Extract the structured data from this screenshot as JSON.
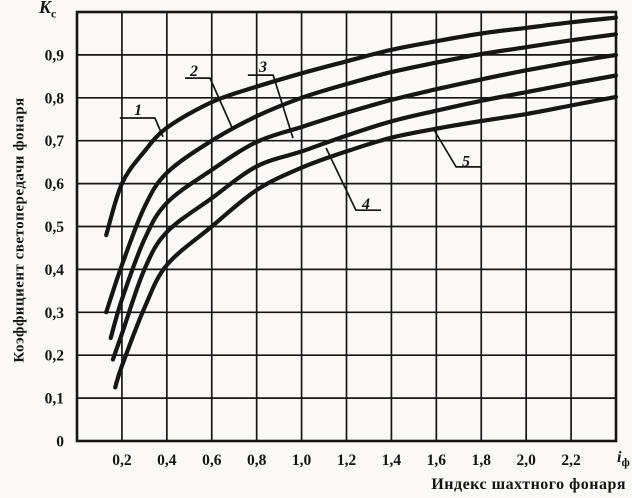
{
  "y_axis_symbol": {
    "base": "K",
    "sub": "c"
  },
  "x_axis_symbol": {
    "base": "i",
    "sub": "ф"
  },
  "y_axis_title": "Коэффициент светопередачи фонаря",
  "x_axis_title": "Индекс шахтного фонаря",
  "colors": {
    "line": "#161616",
    "background": "#faf9f8",
    "text": "#141414"
  },
  "chart_data": {
    "type": "line",
    "title": "",
    "xlabel": "Индекс шахтного фонаря",
    "ylabel": "Коэффициент светопередачи фонаря",
    "x_range": [
      0,
      2.4
    ],
    "y_range": [
      0,
      1.0
    ],
    "x_grid_step": 0.2,
    "y_grid_step": 0.1,
    "grid": true,
    "x_ticks": [
      {
        "v": 0.2,
        "label": "0,2"
      },
      {
        "v": 0.4,
        "label": "0,4"
      },
      {
        "v": 0.6,
        "label": "0,6"
      },
      {
        "v": 0.8,
        "label": "0,8"
      },
      {
        "v": 1.0,
        "label": "1,0"
      },
      {
        "v": 1.2,
        "label": "1,2"
      },
      {
        "v": 1.4,
        "label": "1,4"
      },
      {
        "v": 1.6,
        "label": "1,6"
      },
      {
        "v": 1.8,
        "label": "1,8"
      },
      {
        "v": 2.0,
        "label": "2,0"
      },
      {
        "v": 2.2,
        "label": "2,2"
      }
    ],
    "y_ticks": [
      {
        "v": 0.9,
        "label": "0,9"
      },
      {
        "v": 0.8,
        "label": "0,8"
      },
      {
        "v": 0.7,
        "label": "0,7"
      },
      {
        "v": 0.6,
        "label": "0,6"
      },
      {
        "v": 0.5,
        "label": "0,5"
      },
      {
        "v": 0.4,
        "label": "0,4"
      },
      {
        "v": 0.3,
        "label": "0,3"
      },
      {
        "v": 0.2,
        "label": "0,2"
      },
      {
        "v": 0.1,
        "label": "0,1"
      },
      {
        "v": 0,
        "label": "0"
      }
    ],
    "series": [
      {
        "name": "1",
        "points": [
          [
            0.13,
            0.48
          ],
          [
            0.2,
            0.6
          ],
          [
            0.3,
            0.675
          ],
          [
            0.4,
            0.73
          ],
          [
            0.6,
            0.79
          ],
          [
            0.8,
            0.826
          ],
          [
            1.0,
            0.857
          ],
          [
            1.2,
            0.885
          ],
          [
            1.4,
            0.912
          ],
          [
            1.6,
            0.932
          ],
          [
            1.8,
            0.95
          ],
          [
            2.0,
            0.963
          ],
          [
            2.2,
            0.976
          ],
          [
            2.4,
            0.987
          ]
        ]
      },
      {
        "name": "2",
        "points": [
          [
            0.13,
            0.3
          ],
          [
            0.2,
            0.41
          ],
          [
            0.3,
            0.545
          ],
          [
            0.4,
            0.625
          ],
          [
            0.6,
            0.7
          ],
          [
            0.8,
            0.757
          ],
          [
            1.0,
            0.8
          ],
          [
            1.2,
            0.832
          ],
          [
            1.4,
            0.86
          ],
          [
            1.6,
            0.882
          ],
          [
            1.8,
            0.902
          ],
          [
            2.0,
            0.918
          ],
          [
            2.2,
            0.934
          ],
          [
            2.4,
            0.948
          ]
        ]
      },
      {
        "name": "3",
        "points": [
          [
            0.15,
            0.24
          ],
          [
            0.2,
            0.33
          ],
          [
            0.3,
            0.47
          ],
          [
            0.4,
            0.555
          ],
          [
            0.6,
            0.632
          ],
          [
            0.8,
            0.697
          ],
          [
            1.0,
            0.732
          ],
          [
            1.2,
            0.765
          ],
          [
            1.4,
            0.795
          ],
          [
            1.6,
            0.82
          ],
          [
            1.8,
            0.843
          ],
          [
            2.0,
            0.864
          ],
          [
            2.2,
            0.883
          ],
          [
            2.4,
            0.9
          ]
        ]
      },
      {
        "name": "4",
        "points": [
          [
            0.16,
            0.19
          ],
          [
            0.2,
            0.25
          ],
          [
            0.3,
            0.4
          ],
          [
            0.4,
            0.487
          ],
          [
            0.6,
            0.566
          ],
          [
            0.8,
            0.64
          ],
          [
            1.0,
            0.675
          ],
          [
            1.2,
            0.712
          ],
          [
            1.4,
            0.745
          ],
          [
            1.6,
            0.77
          ],
          [
            1.8,
            0.793
          ],
          [
            2.0,
            0.813
          ],
          [
            2.2,
            0.833
          ],
          [
            2.4,
            0.852
          ]
        ]
      },
      {
        "name": "5",
        "points": [
          [
            0.17,
            0.125
          ],
          [
            0.2,
            0.175
          ],
          [
            0.3,
            0.31
          ],
          [
            0.4,
            0.41
          ],
          [
            0.6,
            0.5
          ],
          [
            0.8,
            0.585
          ],
          [
            1.0,
            0.637
          ],
          [
            1.2,
            0.675
          ],
          [
            1.4,
            0.707
          ],
          [
            1.6,
            0.728
          ],
          [
            1.8,
            0.746
          ],
          [
            2.0,
            0.762
          ],
          [
            2.2,
            0.782
          ],
          [
            2.4,
            0.802
          ]
        ]
      }
    ],
    "annotations": [
      {
        "label": "1",
        "text_at": [
          0.272,
          0.772
        ],
        "leader": [
          [
            0.191,
            0.753
          ],
          [
            0.347,
            0.753
          ],
          [
            0.383,
            0.709
          ]
        ]
      },
      {
        "label": "2",
        "text_at": [
          0.521,
          0.862
        ],
        "leader": [
          [
            0.481,
            0.846
          ],
          [
            0.592,
            0.846
          ],
          [
            0.695,
            0.725
          ]
        ]
      },
      {
        "label": "3",
        "text_at": [
          0.828,
          0.872
        ],
        "leader": [
          [
            0.761,
            0.853
          ],
          [
            0.873,
            0.853
          ],
          [
            0.962,
            0.706
          ]
        ]
      },
      {
        "label": "4",
        "text_at": [
          1.287,
          0.552
        ],
        "leader": [
          [
            1.109,
            0.683
          ],
          [
            1.242,
            0.538
          ],
          [
            1.354,
            0.538
          ]
        ]
      },
      {
        "label": "5",
        "text_at": [
          1.732,
          0.652
        ],
        "leader": [
          [
            1.59,
            0.725
          ],
          [
            1.688,
            0.639
          ],
          [
            1.799,
            0.639
          ]
        ]
      }
    ],
    "legend": "none"
  }
}
